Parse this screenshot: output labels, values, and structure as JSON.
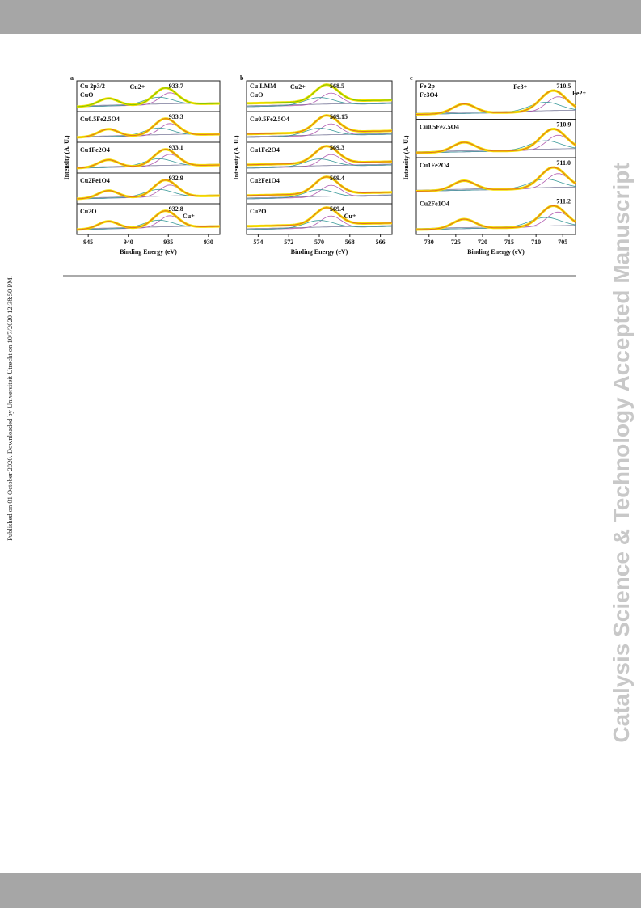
{
  "side_text": "Published on 01 October 2020. Downloaded by Universiteit Utrecht on 10/7/2020 12:38:50 PM.",
  "watermark": "Catalysis Science & Technology Accepted Manuscript",
  "figure": {
    "panels": [
      {
        "label": "a",
        "header": "Cu 2p3/2",
        "ylabel": "Intensity (A. U.)",
        "xlabel": "Binding Energy (eV)",
        "xticks": [
          "945",
          "940",
          "935",
          "930"
        ],
        "rows": [
          {
            "name": "CuO",
            "peak": "933.7"
          },
          {
            "name": "Cu0.5Fe2.5O4",
            "peak": "933.3"
          },
          {
            "name": "Cu1Fe2O4",
            "peak": "933.1"
          },
          {
            "name": "Cu2Fe1O4",
            "peak": "932.9"
          },
          {
            "name": "Cu2O",
            "peak": "932.8"
          }
        ],
        "annotations": [
          {
            "text": "Cu2+",
            "row": 0
          },
          {
            "text": "Cu+",
            "row": 4
          }
        ]
      },
      {
        "label": "b",
        "header": "Cu LMM",
        "ylabel": "Intensity (A. U.)",
        "xlabel": "Binding Energy (eV)",
        "xticks": [
          "574",
          "572",
          "570",
          "568",
          "566"
        ],
        "rows": [
          {
            "name": "CuO",
            "peak": "568.5"
          },
          {
            "name": "Cu0.5Fe2.5O4",
            "peak": "569.15"
          },
          {
            "name": "Cu1Fe2O4",
            "peak": "569.3"
          },
          {
            "name": "Cu2Fe1O4",
            "peak": "569.4"
          },
          {
            "name": "Cu2O",
            "peak": "569.4"
          }
        ],
        "annotations": [
          {
            "text": "Cu2+",
            "row": 0
          },
          {
            "text": "Cu+",
            "row": 4
          }
        ]
      },
      {
        "label": "c",
        "header": "Fe 2p",
        "ylabel": "Intensity (A. U.)",
        "xlabel": "Binding Energy (eV)",
        "xticks": [
          "730",
          "725",
          "720",
          "715",
          "710",
          "705"
        ],
        "rows": [
          {
            "name": "Fe3O4",
            "peak": "710.5"
          },
          {
            "name": "Cu0.5Fe2.5O4",
            "peak": "710.9"
          },
          {
            "name": "Cu1Fe2O4",
            "peak": "711.0"
          },
          {
            "name": "Cu2Fe1O4",
            "peak": "711.2"
          }
        ],
        "annotations": [
          {
            "text": "Fe3+",
            "row": 0
          },
          {
            "text": "Fe2+",
            "row": 0
          }
        ]
      }
    ]
  }
}
